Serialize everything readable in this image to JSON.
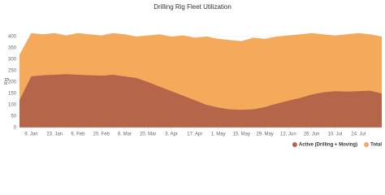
{
  "chart_data": {
    "type": "area",
    "title": "Drilling Rig Fleet Utilization",
    "ylabel": "Rig",
    "categories": [
      null,
      "9. Jan",
      null,
      "23. Jan",
      null,
      "6. Feb",
      null,
      "20. Feb",
      null,
      "6. Mar",
      null,
      "20. Mar",
      null,
      "3. Apr",
      null,
      "17. Apr",
      null,
      "1. May",
      null,
      "15. May",
      null,
      "29. May",
      null,
      "12. Jun",
      null,
      "26. Jun",
      null,
      "10. Jul",
      null,
      "24. Jul",
      null,
      null
    ],
    "series": [
      {
        "name": "Total",
        "color": "#f4a95b",
        "values": [
          320,
          415,
          410,
          415,
          405,
          415,
          410,
          405,
          415,
          410,
          400,
          405,
          410,
          400,
          405,
          395,
          400,
          390,
          385,
          380,
          395,
          390,
          400,
          405,
          410,
          415,
          410,
          405,
          410,
          415,
          410,
          400
        ]
      },
      {
        "name": "Active (Drilling + Moving)",
        "color": "#b5654a",
        "values": [
          120,
          225,
          230,
          232,
          235,
          232,
          230,
          228,
          232,
          225,
          218,
          200,
          180,
          160,
          140,
          120,
          100,
          88,
          80,
          78,
          80,
          90,
          105,
          118,
          130,
          145,
          155,
          160,
          158,
          160,
          162,
          150
        ]
      }
    ],
    "ylim": [
      0,
      450
    ],
    "yticks": [
      0,
      50,
      100,
      150,
      200,
      250,
      300,
      350,
      400
    ],
    "grid": true,
    "legend": "bottom-right"
  }
}
